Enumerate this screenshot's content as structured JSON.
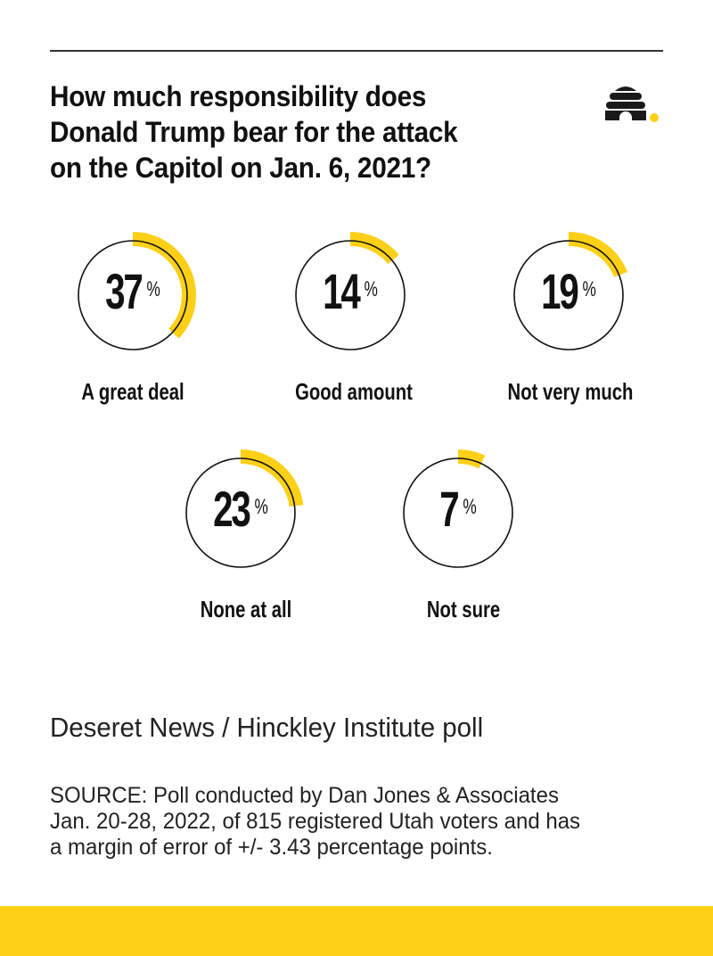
{
  "header": {
    "title": "How much responsibility does Donald Trump bear for the attack on the Capitol on Jan. 6, 2021?",
    "title_lines": [
      "How much responsibility does",
      "Donald Trump bear for the attack",
      "on the Capitol on Jan. 6, 2021?"
    ],
    "logo_icon": "beehive-logo-icon"
  },
  "colors": {
    "accent": "#FDD017",
    "text": "#111111",
    "rule": "#333333",
    "background": "#FFFFFF"
  },
  "chart_data": {
    "type": "pie",
    "style": "radial-progress-rings",
    "title": "How much responsibility does Donald Trump bear for the attack on the Capitol on Jan. 6, 2021?",
    "categories": [
      "A great deal",
      "Good amount",
      "Not very much",
      "None at all",
      "Not sure"
    ],
    "values": [
      37,
      14,
      19,
      23,
      7
    ],
    "unit": "%",
    "items": [
      {
        "label": "A great deal",
        "value": 37,
        "display": "37"
      },
      {
        "label": "Good amount",
        "value": 14,
        "display": "14"
      },
      {
        "label": "Not very much",
        "value": 19,
        "display": "19"
      },
      {
        "label": "None at all",
        "value": 23,
        "display": "23"
      },
      {
        "label": "Not sure",
        "value": 7,
        "display": "7"
      }
    ],
    "pct_symbol": "%"
  },
  "footer": {
    "subtitle": "Deseret News / Hinckley Institute poll",
    "source_lines": [
      "SOURCE: Poll conducted by Dan Jones & Associates",
      "Jan. 20-28, 2022, of 815 registered Utah voters and has",
      "a margin of error of +/- 3.43 percentage points."
    ]
  }
}
